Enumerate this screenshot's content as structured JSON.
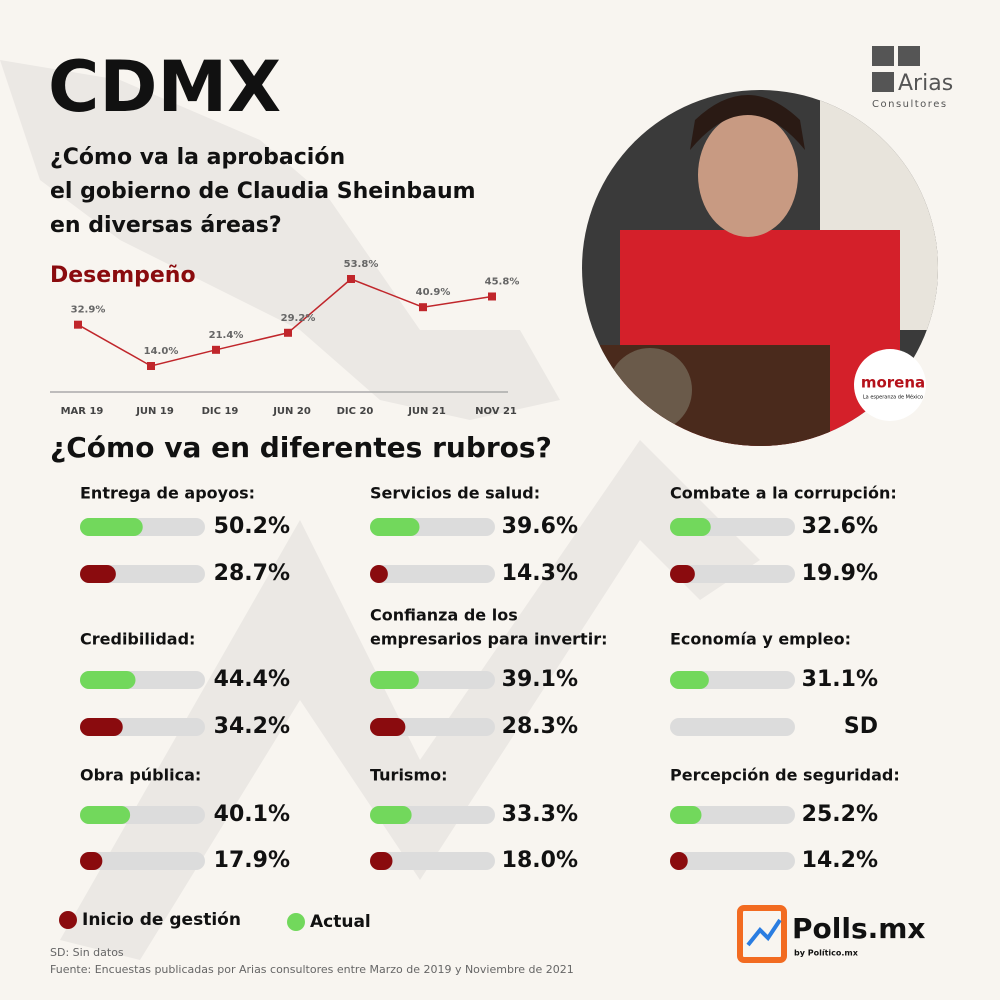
{
  "header": {
    "title": "CDMX",
    "question_lines": [
      "¿Cómo va la aprobación",
      "el gobierno de Claudia Sheinbaum",
      "en diversas áreas?"
    ],
    "logo_name": "Arias",
    "logo_sub": "Consultores",
    "party": "morena",
    "party_sub": "La esperanza de México"
  },
  "chart_data": {
    "type": "line",
    "title": "Desempeño",
    "categories": [
      "MAR 19",
      "JUN 19",
      "DIC 19",
      "JUN 20",
      "DIC 20",
      "JUN 21",
      "NOV 21"
    ],
    "values": [
      32.9,
      14.0,
      21.4,
      29.2,
      53.8,
      40.9,
      45.8
    ],
    "value_labels": [
      "32.9%",
      "14.0%",
      "21.4%",
      "29.2%",
      "53.8%",
      "40.9%",
      "45.8%"
    ],
    "color": "#c0262b"
  },
  "section_title": "¿Cómo va en diferentes rubros?",
  "rubros": [
    {
      "title": [
        "Entrega de apoyos:"
      ],
      "actual": 50.2,
      "actual_label": "50.2%",
      "inicio": 28.7,
      "inicio_label": "28.7%"
    },
    {
      "title": [
        "Servicios de salud:"
      ],
      "actual": 39.6,
      "actual_label": "39.6%",
      "inicio": 14.3,
      "inicio_label": "14.3%"
    },
    {
      "title": [
        "Combate a la corrupción:"
      ],
      "actual": 32.6,
      "actual_label": "32.6%",
      "inicio": 19.9,
      "inicio_label": "19.9%"
    },
    {
      "title": [
        "Credibilidad:"
      ],
      "actual": 44.4,
      "actual_label": "44.4%",
      "inicio": 34.2,
      "inicio_label": "34.2%"
    },
    {
      "title": [
        "Confianza de los",
        "empresarios para invertir:"
      ],
      "actual": 39.1,
      "actual_label": "39.1%",
      "inicio": 28.3,
      "inicio_label": "28.3%"
    },
    {
      "title": [
        "Economía y empleo:"
      ],
      "actual": 31.1,
      "actual_label": "31.1%",
      "inicio": null,
      "inicio_label": "SD"
    },
    {
      "title": [
        "Obra pública:"
      ],
      "actual": 40.1,
      "actual_label": "40.1%",
      "inicio": 17.9,
      "inicio_label": "17.9%"
    },
    {
      "title": [
        "Turismo:"
      ],
      "actual": 33.3,
      "actual_label": "33.3%",
      "inicio": 18.0,
      "inicio_label": "18.0%"
    },
    {
      "title": [
        "Percepción de seguridad:"
      ],
      "actual": 25.2,
      "actual_label": "25.2%",
      "inicio": 14.2,
      "inicio_label": "14.2%"
    }
  ],
  "legend": [
    {
      "name": "Inicio de gestión",
      "color": "#8a0b0e"
    },
    {
      "name": "Actual",
      "color": "#72d85c"
    }
  ],
  "footer": {
    "note": "SD: Sin datos",
    "source": "Fuente: Encuestas publicadas por Arias consultores entre Marzo de 2019 y Noviembre de 2021",
    "brand": "Polls.mx",
    "brand_sub": "by Político.mx"
  }
}
